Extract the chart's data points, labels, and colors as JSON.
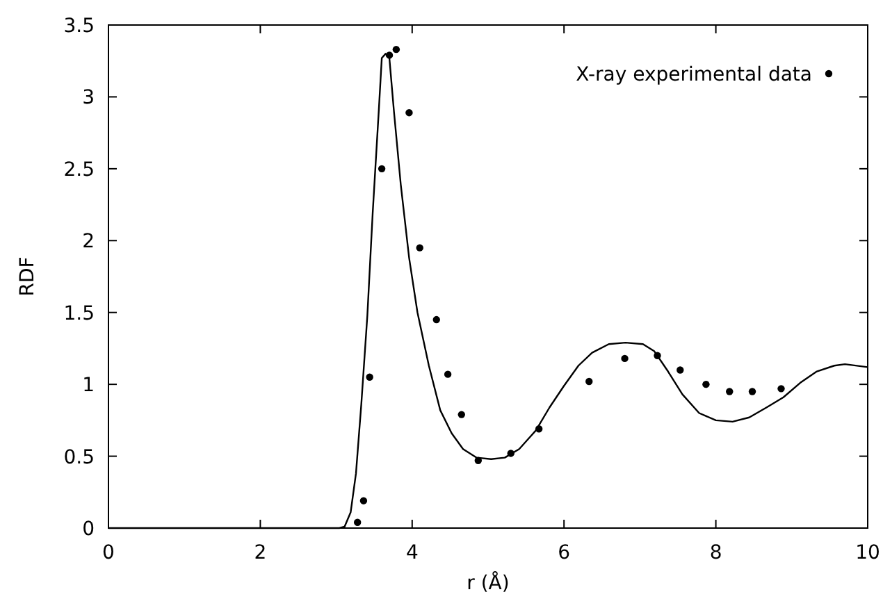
{
  "chart_data": {
    "type": "scatter",
    "xlabel": "r (Å)",
    "ylabel": "RDF",
    "xlim": [
      0,
      10
    ],
    "ylim": [
      0,
      3.5
    ],
    "xticks": [
      0,
      2,
      4,
      6,
      8,
      10
    ],
    "yticks": [
      0,
      0.5,
      1,
      1.5,
      2,
      2.5,
      3,
      3.5
    ],
    "grid": false,
    "legend": "top right",
    "series": [
      {
        "name": "X-ray experimental data",
        "marker": "circle",
        "color": "#000000",
        "x": [
          3.28,
          3.36,
          3.44,
          3.6,
          3.7,
          3.79,
          3.96,
          4.1,
          4.32,
          4.47,
          4.65,
          4.87,
          5.3,
          5.67,
          6.33,
          6.8,
          7.23,
          7.53,
          7.87,
          8.18,
          8.48,
          8.86
        ],
        "values": [
          0.04,
          0.19,
          1.05,
          2.5,
          3.29,
          3.33,
          2.89,
          1.95,
          1.45,
          1.07,
          0.79,
          0.47,
          0.52,
          0.69,
          1.02,
          1.18,
          1.2,
          1.1,
          1.0,
          0.95,
          0.95,
          0.97
        ]
      },
      {
        "type": "line",
        "marker": "none",
        "line_style": "solid",
        "color": "#000000",
        "x": [
          0,
          1,
          2,
          3.04,
          3.11,
          3.19,
          3.26,
          3.33,
          3.41,
          3.48,
          3.56,
          3.6,
          3.65,
          3.7,
          3.76,
          3.85,
          3.96,
          4.07,
          4.22,
          4.37,
          4.52,
          4.67,
          4.85,
          5.04,
          5.22,
          5.41,
          5.63,
          5.81,
          6.0,
          6.19,
          6.37,
          6.59,
          6.81,
          7.04,
          7.19,
          7.37,
          7.56,
          7.78,
          8.0,
          8.22,
          8.44,
          8.67,
          8.89,
          9.11,
          9.33,
          9.56,
          9.7,
          10.0
        ],
        "values": [
          0,
          0,
          0,
          0,
          0.01,
          0.11,
          0.38,
          0.86,
          1.48,
          2.19,
          2.9,
          3.27,
          3.3,
          3.27,
          2.9,
          2.39,
          1.88,
          1.5,
          1.13,
          0.82,
          0.66,
          0.55,
          0.49,
          0.48,
          0.49,
          0.55,
          0.68,
          0.84,
          0.99,
          1.13,
          1.22,
          1.28,
          1.29,
          1.28,
          1.23,
          1.09,
          0.93,
          0.8,
          0.75,
          0.74,
          0.77,
          0.84,
          0.91,
          1.01,
          1.09,
          1.13,
          1.14,
          1.12
        ]
      }
    ]
  }
}
